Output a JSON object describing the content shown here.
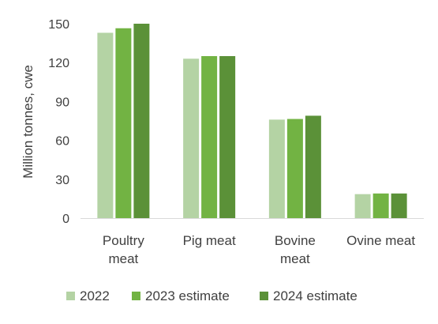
{
  "chart_data": {
    "type": "bar",
    "title": "",
    "ylabel": "Million tonnes, cwe",
    "xlabel": "",
    "ylim": [
      0,
      150
    ],
    "yticks": [
      0,
      30,
      60,
      90,
      120,
      150
    ],
    "grid": false,
    "legend_position": "bottom",
    "categories": [
      [
        "Poultry",
        "meat"
      ],
      [
        "Pig meat"
      ],
      [
        "Bovine",
        "meat"
      ],
      [
        "Ovine meat"
      ]
    ],
    "series": [
      {
        "name": "2022",
        "color": "#b4d3a4",
        "values": [
          143,
          123,
          76,
          18.5
        ]
      },
      {
        "name": "2023 estimate",
        "color": "#72b343",
        "values": [
          146.5,
          125,
          76.5,
          19
        ]
      },
      {
        "name": "2024 estimate",
        "color": "#5b9138",
        "values": [
          150,
          125,
          79,
          19
        ]
      }
    ]
  }
}
